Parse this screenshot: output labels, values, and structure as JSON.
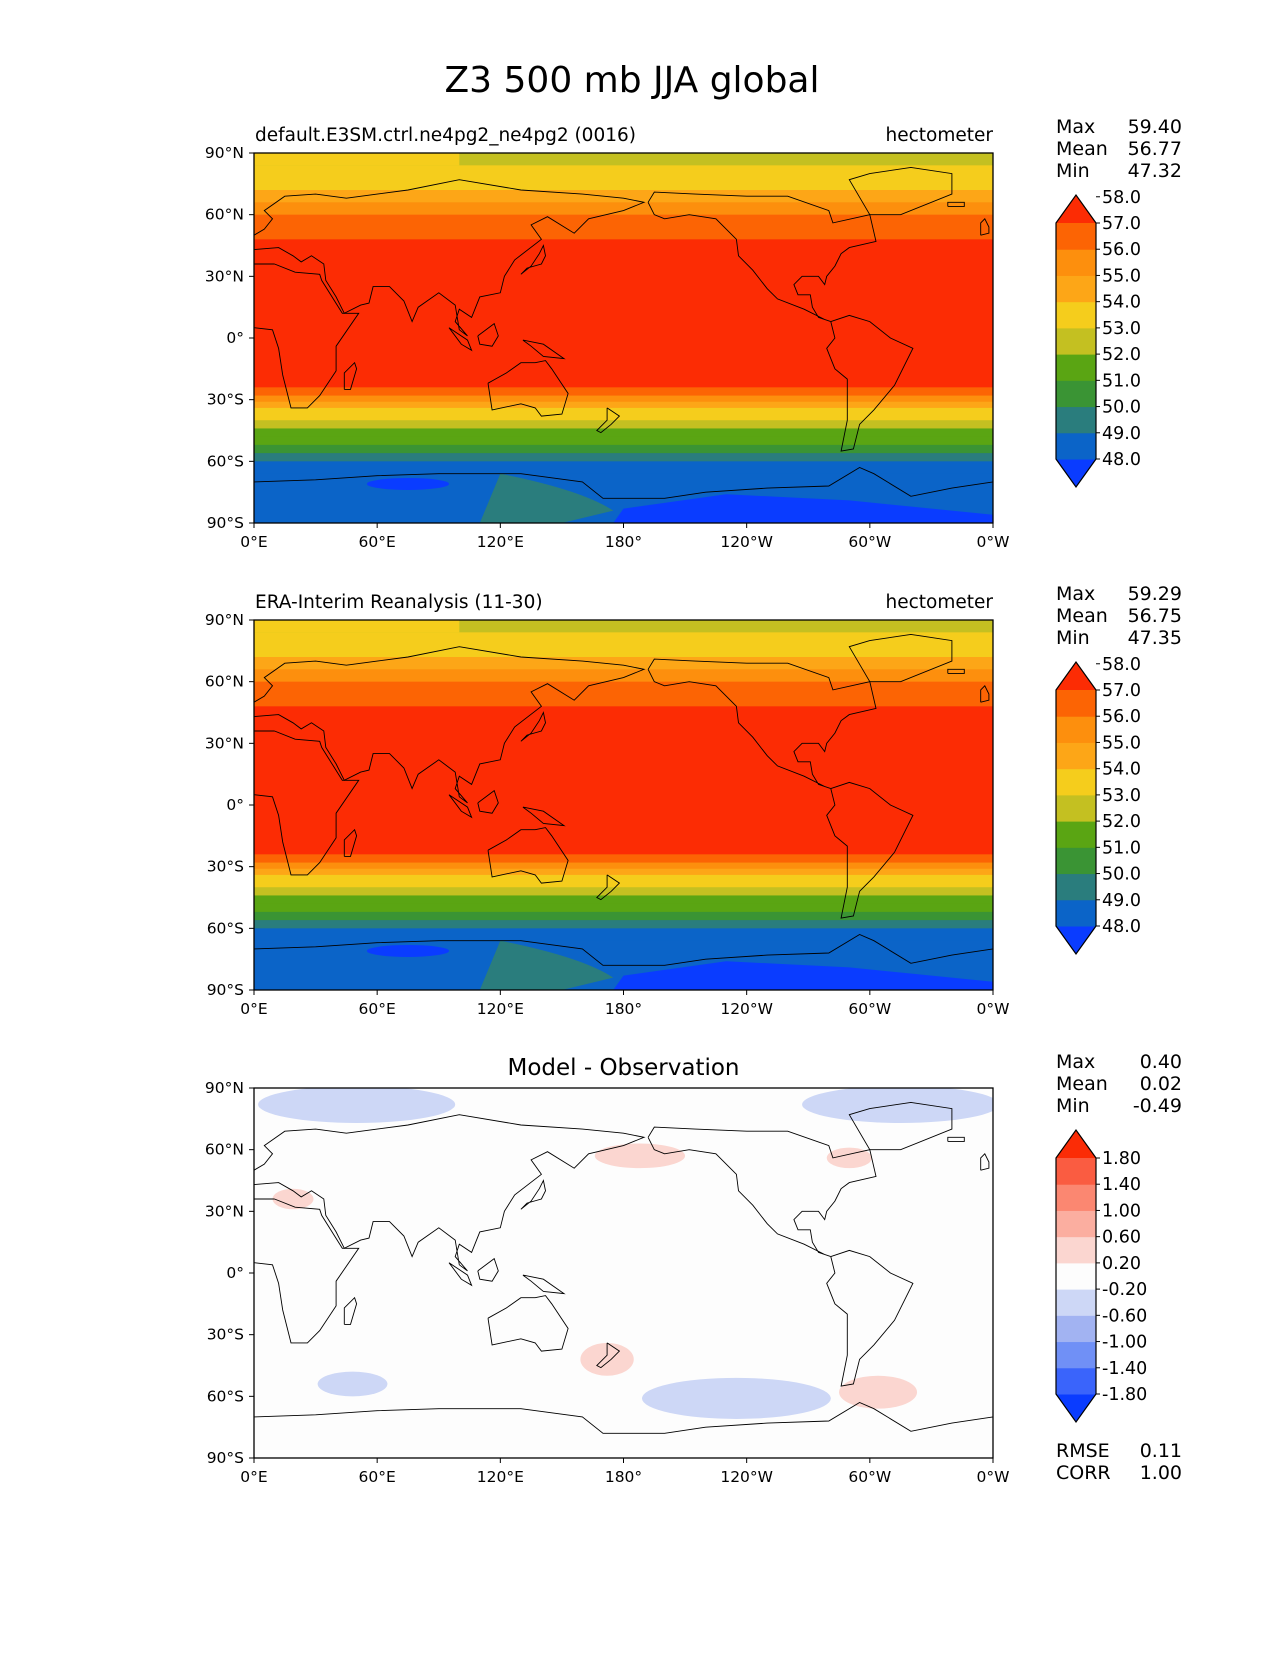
{
  "figure": {
    "title": "Z3 500 mb JJA global"
  },
  "axes": {
    "lat_ticks": [
      "90°N",
      "60°N",
      "30°N",
      "0°",
      "30°S",
      "60°S",
      "90°S"
    ],
    "lon_ticks": [
      "0°E",
      "60°E",
      "120°E",
      "180°",
      "120°W",
      "60°W",
      "0°W"
    ]
  },
  "colors": {
    "heights": [
      "#0a3cff",
      "#0b64c8",
      "#2a7d7d",
      "#3a9434",
      "#5aa513",
      "#c4c021",
      "#f5cd1c",
      "#fda617",
      "#fd8f0d",
      "#fc6404",
      "#fc2c04"
    ],
    "diff": [
      "#0a3cff",
      "#3a64fb",
      "#7090f6",
      "#a2b3f2",
      "#cdd7f6",
      "#fdfdfd",
      "#fbd6d0",
      "#fbaea0",
      "#fb8771",
      "#fa5c41",
      "#fb2c06"
    ]
  },
  "chart_data": [
    {
      "type": "heatmap",
      "title": "default.E3SM.ctrl.ne4pg2_ne4pg2 (0016)",
      "units": "hectometer",
      "stats": {
        "max": "59.40",
        "mean": "56.77",
        "min": "47.32"
      },
      "xlim": [
        0,
        360
      ],
      "ylim": [
        -90,
        90
      ],
      "colorbar": {
        "levels": [
          "48.0",
          "49.0",
          "50.0",
          "51.0",
          "52.0",
          "53.0",
          "54.0",
          "55.0",
          "56.0",
          "57.0",
          "58.0"
        ],
        "extend": "both"
      }
    },
    {
      "type": "heatmap",
      "title": "ERA-Interim Reanalysis (11-30)",
      "units": "hectometer",
      "stats": {
        "max": "59.29",
        "mean": "56.75",
        "min": "47.35"
      },
      "xlim": [
        0,
        360
      ],
      "ylim": [
        -90,
        90
      ],
      "colorbar": {
        "levels": [
          "48.0",
          "49.0",
          "50.0",
          "51.0",
          "52.0",
          "53.0",
          "54.0",
          "55.0",
          "56.0",
          "57.0",
          "58.0"
        ],
        "extend": "both"
      }
    },
    {
      "type": "heatmap",
      "title": "Model - Observation",
      "stats": {
        "max": "0.40",
        "mean": "0.02",
        "min": "-0.49",
        "rmse": "0.11",
        "corr": "1.00"
      },
      "xlim": [
        0,
        360
      ],
      "ylim": [
        -90,
        90
      ],
      "colorbar": {
        "levels": [
          "-1.80",
          "-1.40",
          "-1.00",
          "-0.60",
          "-0.20",
          "0.20",
          "0.60",
          "1.00",
          "1.40",
          "1.80"
        ],
        "extend": "both"
      }
    }
  ],
  "labels": {
    "max": "Max",
    "mean": "Mean",
    "min": "Min",
    "rmse": "RMSE",
    "corr": "CORR"
  }
}
